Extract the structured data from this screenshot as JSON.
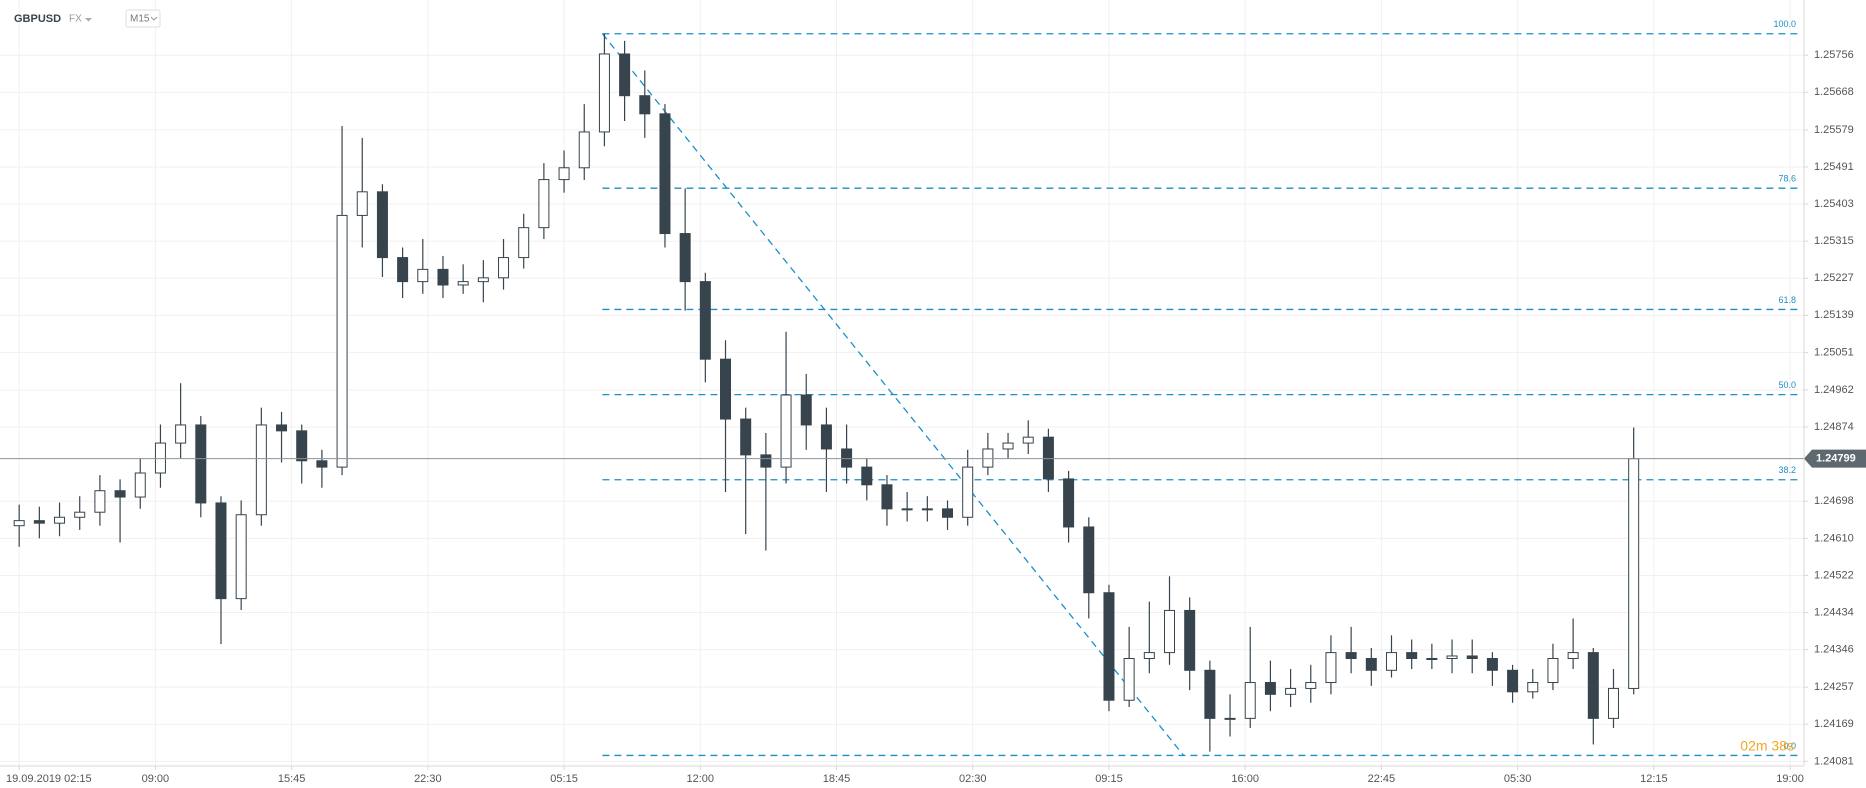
{
  "header": {
    "symbol": "GBPUSD",
    "market": "FX",
    "timeframe": "M15"
  },
  "chart_data": {
    "type": "candlestick",
    "x": [
      0,
      1,
      2,
      3,
      4,
      5,
      6,
      7,
      8,
      9,
      10,
      11,
      12,
      13,
      14,
      15,
      16,
      17,
      18,
      19,
      20,
      21,
      22,
      23,
      24,
      25,
      26,
      27,
      28,
      29,
      30,
      31,
      32,
      33,
      34,
      35,
      36,
      37,
      38,
      39,
      40,
      41,
      42,
      43,
      44,
      45,
      46,
      47,
      48,
      49,
      50,
      51,
      52,
      53,
      54,
      55,
      56,
      57,
      58,
      59,
      60,
      61,
      62,
      63,
      64,
      65,
      66,
      67,
      68,
      69,
      70,
      71,
      72,
      73,
      74,
      75,
      76,
      77,
      78,
      79,
      80
    ],
    "open": [
      1.2464,
      1.24652,
      1.24646,
      1.2466,
      1.24672,
      1.24723,
      1.24708,
      1.24765,
      1.24836,
      1.24879,
      1.24694,
      1.24467,
      1.24666,
      1.24879,
      1.24865,
      1.24794,
      1.24779,
      1.25376,
      1.25432,
      1.25276,
      1.25219,
      1.25248,
      1.25211,
      1.25219,
      1.25228,
      1.25276,
      1.25347,
      1.25461,
      1.25489,
      1.25574,
      1.25759,
      1.2566,
      1.25617,
      1.25333,
      1.25219,
      1.25035,
      1.24893,
      1.24808,
      1.24779,
      1.2495,
      1.24879,
      1.24822,
      1.24779,
      1.24737,
      1.2468,
      1.2468,
      1.2468,
      1.2466,
      1.24779,
      1.24822,
      1.24836,
      1.2485,
      1.24751,
      1.24637,
      1.24481,
      1.24226,
      1.24325,
      1.24339,
      1.24439,
      1.24297,
      1.24183,
      1.24183,
      1.24268,
      1.2424,
      1.24254,
      1.24268,
      1.24339,
      1.24325,
      1.24297,
      1.24339,
      1.24325,
      1.24325,
      1.24331,
      1.24325,
      1.24297,
      1.24246,
      1.24268,
      1.24325,
      1.24339,
      1.24183,
      1.24254
    ],
    "high": [
      1.2469,
      1.24685,
      1.24695,
      1.2471,
      1.2476,
      1.2475,
      1.248,
      1.2488,
      1.24978,
      1.249,
      1.2471,
      1.247,
      1.2492,
      1.2491,
      1.2488,
      1.2482,
      1.25588,
      1.2556,
      1.2545,
      1.253,
      1.2532,
      1.2528,
      1.2526,
      1.2527,
      1.2532,
      1.2538,
      1.255,
      1.2553,
      1.2564,
      1.25807,
      1.2579,
      1.2572,
      1.2564,
      1.2544,
      1.2524,
      1.2508,
      1.2492,
      1.2486,
      1.251,
      1.25,
      1.2492,
      1.2488,
      1.248,
      1.2476,
      1.2472,
      1.2471,
      1.247,
      1.2482,
      1.2486,
      1.2486,
      1.2489,
      1.2487,
      1.2477,
      1.2466,
      1.245,
      1.244,
      1.2446,
      1.2452,
      1.2447,
      1.2432,
      1.2424,
      1.244,
      1.2432,
      1.243,
      1.2431,
      1.2438,
      1.244,
      1.2435,
      1.2438,
      1.2437,
      1.2436,
      1.2437,
      1.2437,
      1.2434,
      1.2431,
      1.243,
      1.2436,
      1.2442,
      1.2435,
      1.243,
      1.24873
    ],
    "low": [
      1.2459,
      1.2461,
      1.24615,
      1.2463,
      1.2464,
      1.246,
      1.2468,
      1.2473,
      1.248,
      1.2466,
      1.24359,
      1.2444,
      1.2464,
      1.2479,
      1.2474,
      1.2473,
      1.2476,
      1.253,
      1.2523,
      1.2518,
      1.2519,
      1.2518,
      1.2519,
      1.2517,
      1.252,
      1.2525,
      1.2532,
      1.2543,
      1.2546,
      1.2554,
      1.256,
      1.2556,
      1.253,
      1.2515,
      1.2498,
      1.2472,
      1.2462,
      1.24581,
      1.2474,
      1.2482,
      1.2472,
      1.2474,
      1.247,
      1.2464,
      1.2465,
      1.2465,
      1.2463,
      1.2464,
      1.2476,
      1.248,
      1.2481,
      1.2472,
      1.246,
      1.2442,
      1.242,
      1.2421,
      1.2429,
      1.2431,
      1.2425,
      1.24104,
      1.2414,
      1.2416,
      1.242,
      1.2421,
      1.2422,
      1.2424,
      1.2429,
      1.2426,
      1.2428,
      1.243,
      1.243,
      1.2429,
      1.2429,
      1.2426,
      1.2422,
      1.2423,
      1.2425,
      1.243,
      1.24121,
      1.2416,
      1.2424
    ],
    "close": [
      1.24652,
      1.24646,
      1.2466,
      1.24672,
      1.24723,
      1.24708,
      1.24765,
      1.24836,
      1.24879,
      1.24694,
      1.24467,
      1.24666,
      1.24879,
      1.24865,
      1.24794,
      1.24779,
      1.25376,
      1.25432,
      1.25276,
      1.25219,
      1.25248,
      1.25211,
      1.25219,
      1.25228,
      1.25276,
      1.25347,
      1.25461,
      1.25489,
      1.25574,
      1.25759,
      1.2566,
      1.25617,
      1.25333,
      1.25219,
      1.25035,
      1.24893,
      1.24808,
      1.24779,
      1.2495,
      1.24879,
      1.24822,
      1.24779,
      1.24737,
      1.2468,
      1.2468,
      1.2468,
      1.2466,
      1.24779,
      1.24822,
      1.24836,
      1.2485,
      1.24751,
      1.24637,
      1.24481,
      1.24226,
      1.24325,
      1.24339,
      1.24439,
      1.24297,
      1.24183,
      1.24183,
      1.24268,
      1.2424,
      1.24254,
      1.24268,
      1.24339,
      1.24325,
      1.24297,
      1.24339,
      1.24325,
      1.24325,
      1.24331,
      1.24325,
      1.24297,
      1.24246,
      1.24268,
      1.24325,
      1.24339,
      1.24183,
      1.24254,
      1.24799
    ],
    "colors": {
      "up": "#ffffff",
      "down": "#37444d",
      "outline": "#37444d"
    },
    "xlim": [
      -0.95,
      88.44
    ],
    "xticks": [
      {
        "value": 0,
        "label": "19.09.2019  02:15"
      },
      {
        "value": 6.75,
        "label": "09:00"
      },
      {
        "value": 13.5,
        "label": "15:45"
      },
      {
        "value": 20.25,
        "label": "22:30"
      },
      {
        "value": 27,
        "label": "05:15"
      },
      {
        "value": 33.75,
        "label": "12:00"
      },
      {
        "value": 40.5,
        "label": "18:45"
      },
      {
        "value": 47.25,
        "label": "02:30"
      },
      {
        "value": 54,
        "label": "09:15"
      },
      {
        "value": 60.75,
        "label": "16:00"
      },
      {
        "value": 67.5,
        "label": "22:45"
      },
      {
        "value": 74.25,
        "label": "05:30"
      },
      {
        "value": 81,
        "label": "12:15"
      },
      {
        "value": 87.75,
        "label": "19:00"
      }
    ],
    "ylim": [
      1.2407,
      1.25887
    ],
    "yticks": [
      1.25756,
      1.25668,
      1.25579,
      1.25491,
      1.25403,
      1.25315,
      1.25227,
      1.25139,
      1.25051,
      1.24962,
      1.24874,
      1.24698,
      {
        "value": 1.2461,
        "label": "1.24610"
      },
      1.24522,
      1.24434,
      1.24346,
      1.24257,
      1.24169,
      1.24081
    ],
    "grid": true,
    "last_price": 1.24799,
    "countdown": "02m 38s",
    "fibonacci": {
      "color": "#1e8fc8",
      "start": {
        "x": 28.9,
        "y": 1.25807
      },
      "end": {
        "x": 57.7,
        "y": 1.24095
      },
      "levels": [
        {
          "value": 100,
          "label": "100.0"
        },
        78.6,
        61.8,
        {
          "value": 50,
          "label": "50.0"
        },
        38.2,
        {
          "value": 0,
          "label": "0.0"
        }
      ]
    }
  }
}
